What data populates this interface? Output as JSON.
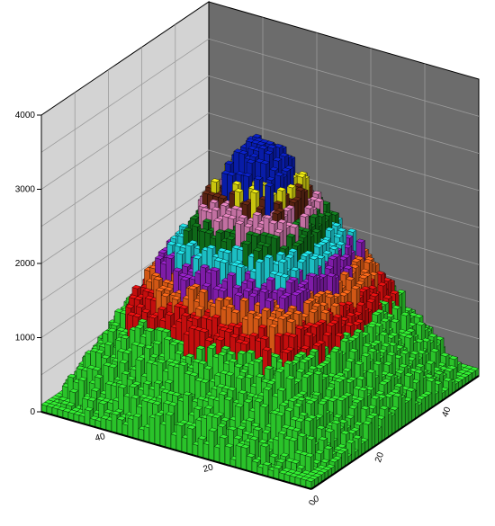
{
  "chart_data": {
    "type": "bar3d",
    "title": "",
    "xlabel": "",
    "ylabel": "",
    "zlabel": "",
    "z_ticks": [
      "0",
      "1000",
      "2000",
      "3000",
      "4000"
    ],
    "zlim": [
      0,
      4000
    ],
    "x_ticks": [
      "0",
      "20",
      "40"
    ],
    "y_ticks": [
      "0",
      "20",
      "40"
    ],
    "xlim": [
      0,
      50
    ],
    "ylim": [
      0,
      50
    ],
    "grid": true,
    "surface": "stepped pyramid, peak ~3300 at grid center, height falls roughly linearly toward all four edges, with small random roughness",
    "color_bands": [
      {
        "from": 0,
        "to": 1300,
        "color": "#33ee33"
      },
      {
        "from": 1300,
        "to": 1600,
        "color": "#ee1111"
      },
      {
        "from": 1600,
        "to": 1850,
        "color": "#ff6a1a"
      },
      {
        "from": 1850,
        "to": 2100,
        "color": "#9a22cc"
      },
      {
        "from": 2100,
        "to": 2350,
        "color": "#22e8ee"
      },
      {
        "from": 2350,
        "to": 2550,
        "color": "#12801e"
      },
      {
        "from": 2550,
        "to": 2750,
        "color": "#ec88c4"
      },
      {
        "from": 2750,
        "to": 2900,
        "color": "#6a2a16"
      },
      {
        "from": 2900,
        "to": 3050,
        "color": "#f4f012"
      },
      {
        "from": 3050,
        "to": 4000,
        "color": "#0a22cc"
      }
    ],
    "wall_colors": {
      "left": "#d3d3d3",
      "right": "#6c6c6c",
      "grid": "#9b9b9b"
    }
  }
}
